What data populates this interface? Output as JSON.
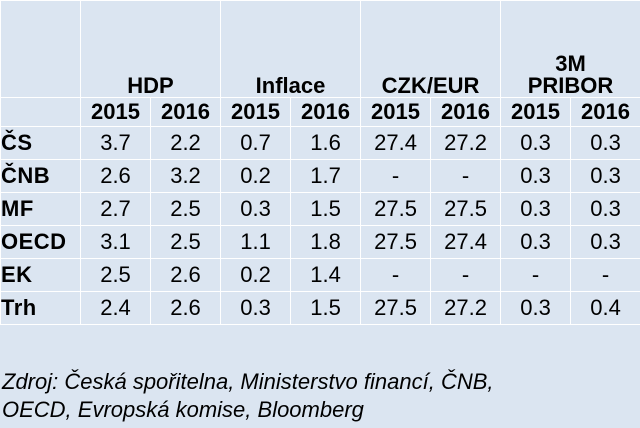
{
  "groups": [
    {
      "lines": [
        "",
        "HDP"
      ]
    },
    {
      "lines": [
        "",
        "Inflace"
      ]
    },
    {
      "lines": [
        "",
        "CZK/EUR"
      ]
    },
    {
      "lines": [
        "3M",
        "PRIBOR"
      ]
    }
  ],
  "years": [
    "2015",
    "2016",
    "2015",
    "2016",
    "2015",
    "2016",
    "2015",
    "2016"
  ],
  "rows": [
    {
      "label": "ČS",
      "values": [
        "3.7",
        "2.2",
        "0.7",
        "1.6",
        "27.4",
        "27.2",
        "0.3",
        "0.3"
      ]
    },
    {
      "label": "ČNB",
      "values": [
        "2.6",
        "3.2",
        "0.2",
        "1.7",
        "-",
        "-",
        "0.3",
        "0.3"
      ]
    },
    {
      "label": "MF",
      "values": [
        "2.7",
        "2.5",
        "0.3",
        "1.5",
        "27.5",
        "27.5",
        "0.3",
        "0.3"
      ]
    },
    {
      "label": "OECD",
      "values": [
        "3.1",
        "2.5",
        "1.1",
        "1.8",
        "27.5",
        "27.4",
        "0.3",
        "0.3"
      ]
    },
    {
      "label": "EK",
      "values": [
        "2.5",
        "2.6",
        "0.2",
        "1.4",
        "-",
        "-",
        "-",
        "-"
      ]
    },
    {
      "label": "Trh",
      "values": [
        "2.4",
        "2.6",
        "0.3",
        "1.5",
        "27.5",
        "27.2",
        "0.3",
        "0.4"
      ]
    }
  ],
  "source_lines": [
    "Zdroj: Česká spořitelna, Ministerstvo financí, ČNB,",
    "OECD, Evropská komise, Bloomberg"
  ]
}
